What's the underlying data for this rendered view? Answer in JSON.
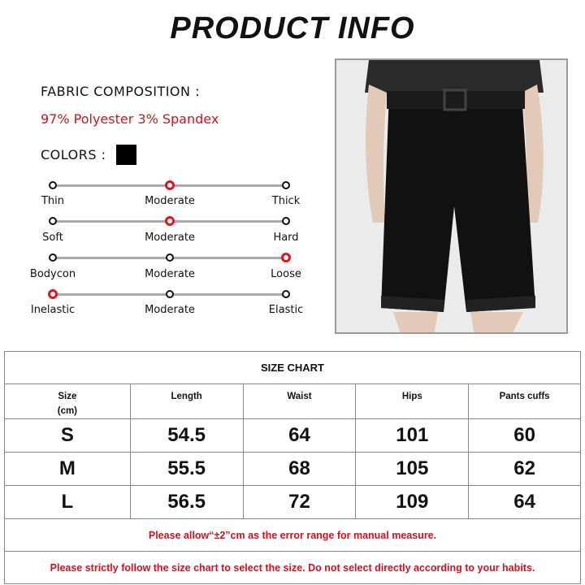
{
  "title": "PRODUCT INFO",
  "fabric": {
    "label": "FABRIC COMPOSITION :",
    "value": "97% Polyester 3% Spandex"
  },
  "colors": {
    "label": "COLORS :",
    "swatches": [
      "#000000"
    ]
  },
  "accent": "#e0141e",
  "scales": [
    {
      "left": "Thin",
      "middle": "Moderate",
      "right": "Thick",
      "selected": "middle"
    },
    {
      "left": "Soft",
      "middle": "Moderate",
      "right": "Hard",
      "selected": "middle"
    },
    {
      "left": "Bodycon",
      "middle": "Moderate",
      "right": "Loose",
      "selected": "right"
    },
    {
      "left": "Inelastic",
      "middle": "Moderate",
      "right": "Elastic",
      "selected": "left"
    }
  ],
  "size_chart": {
    "title": "SIZE CHART",
    "headers": [
      "Size\n(cm)",
      "Length",
      "Waist",
      "Hips",
      "Pants cuffs"
    ],
    "rows": [
      [
        "S",
        "54.5",
        "64",
        "101",
        "60"
      ],
      [
        "M",
        "55.5",
        "68",
        "105",
        "62"
      ],
      [
        "L",
        "56.5",
        "72",
        "109",
        "64"
      ]
    ],
    "note1": "Please allow“±2”cm as the error range for manual measure.",
    "note2": "Please strictly follow the size chart  to select the size. Do not select directly according to your habits."
  }
}
